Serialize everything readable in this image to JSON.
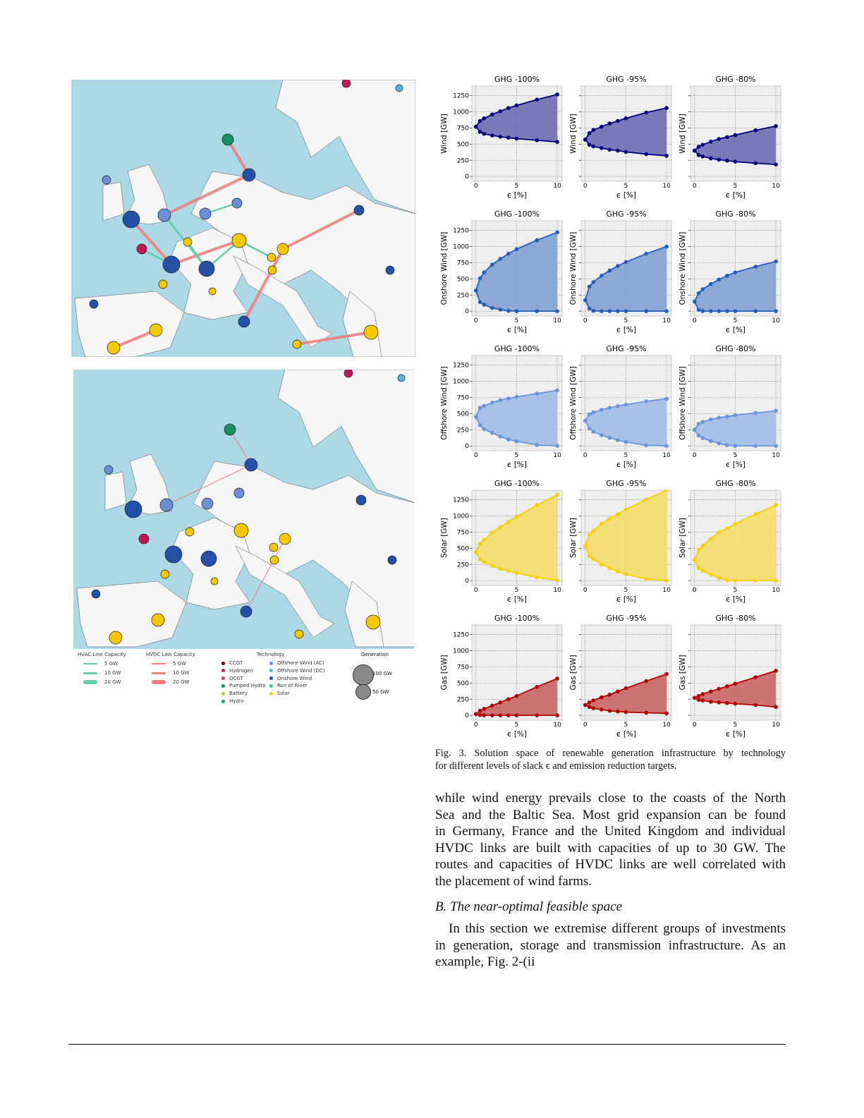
{
  "map_legend": {
    "hvac_title": "HVAC Line Capacity",
    "hvac": [
      "5 GW",
      "10 GW",
      "20 GW"
    ],
    "hvdc_title": "HVDC Link Capacity",
    "hvdc": [
      "5 GW",
      "10 GW",
      "20 GW"
    ],
    "tech_title": "Technology",
    "technologies": [
      {
        "label": "CCGT",
        "color": "#8b0000"
      },
      {
        "label": "Hydrogen",
        "color": "#c2185b"
      },
      {
        "label": "OCGT",
        "color": "#b05050"
      },
      {
        "label": "Pumped Hydro",
        "color": "#1a8f5f"
      },
      {
        "label": "Battery",
        "color": "#b8d432"
      },
      {
        "label": "Hydro",
        "color": "#2a9d7a"
      },
      {
        "label": "Offshore Wind (AC)",
        "color": "#6a8fd8"
      },
      {
        "label": "Offshore Wind (DC)",
        "color": "#5fb0e0"
      },
      {
        "label": "Onshore Wind",
        "color": "#2450a8"
      },
      {
        "label": "Run of River",
        "color": "#3cc0a0"
      },
      {
        "label": "Solar",
        "color": "#f5c800"
      }
    ],
    "gen_title": "Generation",
    "gen": [
      "100 GW",
      "50 GW"
    ],
    "hvac_color": "#66cdaa",
    "hvdc_color": "#f08080"
  },
  "chart_data": {
    "type": "area",
    "panel_titles": [
      "GHG -100%",
      "GHG -95%",
      "GHG -80%"
    ],
    "xlabel": "ϵ [%]",
    "x": [
      0,
      0.5,
      1,
      2,
      3,
      4,
      5,
      7.5,
      10
    ],
    "xticks": [
      0,
      5,
      10
    ],
    "yticks": [
      0,
      250,
      500,
      750,
      1000,
      1250
    ],
    "ylim": [
      -75,
      1400
    ],
    "xlim": [
      -0.5,
      10.6
    ],
    "grid": true,
    "rows": [
      {
        "ylabel": "Wind [GW]",
        "color": "#000080",
        "fill": "#7272b4",
        "panels": [
          {
            "upper": [
              770,
              860,
              900,
              960,
              1010,
              1060,
              1100,
              1190,
              1270
            ],
            "lower": [
              770,
              690,
              660,
              635,
              615,
              600,
              585,
              560,
              535
            ]
          },
          {
            "upper": [
              570,
              670,
              720,
              770,
              820,
              860,
              900,
              990,
              1060
            ],
            "lower": [
              570,
              490,
              465,
              440,
              415,
              400,
              380,
              345,
              320
            ]
          },
          {
            "upper": [
              400,
              460,
              490,
              540,
              580,
              610,
              640,
              715,
              780
            ],
            "lower": [
              400,
              330,
              310,
              280,
              260,
              245,
              230,
              205,
              185
            ]
          }
        ]
      },
      {
        "ylabel": "Onshore Wind [GW]",
        "color": "#235ebc",
        "fill": "#86a3d2",
        "panels": [
          {
            "upper": [
              320,
              510,
              600,
              720,
              810,
              890,
              960,
              1100,
              1220
            ],
            "lower": [
              320,
              140,
              100,
              50,
              25,
              5,
              0,
              0,
              0
            ]
          },
          {
            "upper": [
              170,
              380,
              450,
              550,
              630,
              700,
              760,
              890,
              1000
            ],
            "lower": [
              170,
              40,
              5,
              0,
              0,
              0,
              0,
              0,
              0
            ]
          },
          {
            "upper": [
              150,
              280,
              340,
              420,
              490,
              550,
              600,
              690,
              770
            ],
            "lower": [
              150,
              20,
              0,
              0,
              0,
              0,
              0,
              0,
              0
            ]
          }
        ]
      },
      {
        "ylabel": "Offshore Wind [GW]",
        "color": "#6895dd",
        "fill": "#a4bde6",
        "panels": [
          {
            "upper": [
              450,
              590,
              620,
              670,
              710,
              735,
              760,
              810,
              860
            ],
            "lower": [
              450,
              320,
              260,
              200,
              145,
              100,
              70,
              15,
              0
            ]
          },
          {
            "upper": [
              390,
              490,
              520,
              560,
              590,
              615,
              640,
              690,
              730
            ],
            "lower": [
              390,
              270,
              220,
              165,
              125,
              90,
              60,
              10,
              0
            ]
          },
          {
            "upper": [
              250,
              340,
              370,
              410,
              435,
              455,
              475,
              510,
              545
            ],
            "lower": [
              250,
              160,
              120,
              75,
              40,
              10,
              0,
              0,
              0
            ]
          }
        ]
      },
      {
        "ylabel": "Solar [GW]",
        "color": "#f9d002",
        "fill": "#f3dc6e",
        "panels": [
          {
            "upper": [
              440,
              570,
              630,
              740,
              830,
              910,
              990,
              1170,
              1330
            ],
            "lower": [
              440,
              330,
              290,
              230,
              180,
              150,
              115,
              50,
              5
            ]
          },
          {
            "upper": [
              540,
              710,
              770,
              880,
              960,
              1030,
              1100,
              1260,
              1400
            ],
            "lower": [
              540,
              380,
              330,
              250,
              190,
              140,
              100,
              25,
              0
            ]
          },
          {
            "upper": [
              320,
              480,
              540,
              650,
              750,
              810,
              880,
              1030,
              1170
            ],
            "lower": [
              320,
              190,
              150,
              90,
              40,
              5,
              0,
              0,
              0
            ]
          }
        ]
      },
      {
        "ylabel": "Gas [GW]",
        "color": "#b20101",
        "fill": "#c86a6a",
        "panels": [
          {
            "upper": [
              20,
              70,
              100,
              150,
              200,
              250,
              300,
              440,
              570
            ],
            "lower": [
              20,
              5,
              0,
              0,
              0,
              0,
              0,
              0,
              0
            ]
          },
          {
            "upper": [
              160,
              200,
              230,
              280,
              320,
              370,
              420,
              530,
              640
            ],
            "lower": [
              160,
              130,
              110,
              90,
              70,
              60,
              50,
              40,
              30
            ]
          },
          {
            "upper": [
              270,
              300,
              330,
              370,
              410,
              450,
              490,
              590,
              690
            ],
            "lower": [
              270,
              240,
              230,
              210,
              200,
              190,
              180,
              160,
              130
            ]
          }
        ]
      }
    ]
  },
  "caption": {
    "line1": "Fig. 3.  Solution space of renewable generation infrastructure by technology",
    "line2": "for different levels of slack ϵ and emission reduction targets."
  },
  "body": {
    "para1": [
      "while wind energy prevails close to the coasts of the North",
      "Sea and the Baltic Sea. Most grid expansion can be found",
      "in Germany, France and the United Kingdom and individual",
      "HVDC links are built with capacities of up to 30 GW. The",
      "routes and capacities of HVDC links are well correlated with",
      "the placement of wind farms."
    ],
    "heading": "B.  The near-optimal feasible space",
    "para2": [
      " In this section we extremise different groups of investments",
      "in generation, storage and transmission infrastructure. As an",
      "example,  Fig. 2-(ii"
    ]
  }
}
